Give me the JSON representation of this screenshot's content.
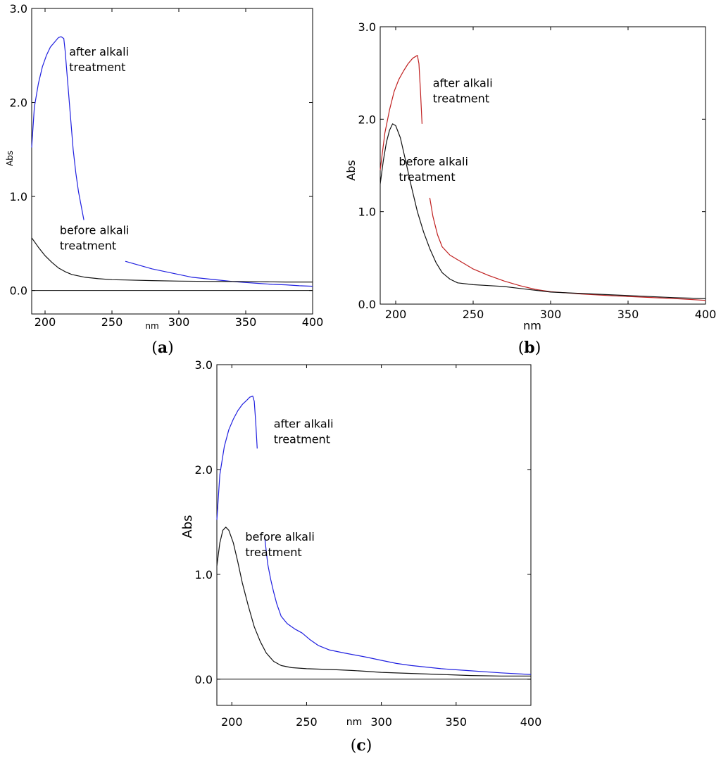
{
  "chart_data": [
    {
      "panel": "a",
      "type": "line",
      "xlabel": "nm",
      "ylabel": "Abs",
      "xlim": [
        190,
        400
      ],
      "ylim": [
        -0.25,
        3.0
      ],
      "xticks": [
        200,
        250,
        300,
        350,
        400
      ],
      "yticks": [
        "0.0",
        "1.0",
        "2.0",
        "3.0"
      ],
      "grid": false,
      "baseline": 0.0,
      "annotations": [
        {
          "lines": [
            "after alkali",
            "treatment"
          ],
          "x": 218,
          "y": 2.5
        },
        {
          "lines": [
            "before alkali",
            "treatment"
          ],
          "x": 211,
          "y": 0.6
        }
      ],
      "series": [
        {
          "color": "#2020e0",
          "segments": [
            [
              [
                190,
                1.52
              ],
              [
                192,
                1.95
              ],
              [
                195,
                2.2
              ],
              [
                198,
                2.38
              ],
              [
                201,
                2.5
              ],
              [
                204,
                2.59
              ],
              [
                207,
                2.64
              ],
              [
                210,
                2.69
              ],
              [
                212,
                2.7
              ],
              [
                214,
                2.68
              ],
              [
                215,
                2.55
              ],
              [
                217,
                2.2
              ],
              [
                219,
                1.85
              ],
              [
                221,
                1.5
              ],
              [
                223,
                1.25
              ],
              [
                225,
                1.05
              ],
              [
                227,
                0.9
              ],
              [
                229,
                0.75
              ]
            ],
            [
              [
                260,
                0.31
              ],
              [
                270,
                0.27
              ],
              [
                280,
                0.23
              ],
              [
                290,
                0.2
              ],
              [
                300,
                0.17
              ],
              [
                310,
                0.14
              ],
              [
                320,
                0.125
              ],
              [
                330,
                0.11
              ],
              [
                340,
                0.095
              ],
              [
                350,
                0.085
              ],
              [
                360,
                0.075
              ],
              [
                370,
                0.065
              ],
              [
                380,
                0.06
              ],
              [
                390,
                0.05
              ],
              [
                400,
                0.045
              ]
            ]
          ]
        },
        {
          "color": "#111111",
          "segments": [
            [
              [
                190,
                0.56
              ],
              [
                195,
                0.46
              ],
              [
                200,
                0.37
              ],
              [
                205,
                0.3
              ],
              [
                210,
                0.24
              ],
              [
                215,
                0.2
              ],
              [
                220,
                0.17
              ],
              [
                230,
                0.14
              ],
              [
                240,
                0.125
              ],
              [
                250,
                0.115
              ],
              [
                260,
                0.112
              ],
              [
                280,
                0.105
              ],
              [
                300,
                0.1
              ],
              [
                320,
                0.097
              ],
              [
                340,
                0.095
              ],
              [
                360,
                0.093
              ],
              [
                380,
                0.09
              ],
              [
                400,
                0.09
              ]
            ]
          ]
        }
      ]
    },
    {
      "panel": "b",
      "type": "line",
      "xlabel": "nm",
      "ylabel": "Abs",
      "xlim": [
        190,
        400
      ],
      "ylim": [
        0.0,
        3.0
      ],
      "xticks": [
        200,
        250,
        300,
        350,
        400
      ],
      "yticks": [
        "0.0",
        "1.0",
        "2.0",
        "3.0"
      ],
      "grid": false,
      "baseline": null,
      "annotations": [
        {
          "lines": [
            "after alkali",
            "treatment"
          ],
          "x": 224,
          "y": 2.35
        },
        {
          "lines": [
            "before alkali",
            "treatment"
          ],
          "x": 202,
          "y": 1.5
        }
      ],
      "series": [
        {
          "color": "#c02020",
          "segments": [
            [
              [
                190,
                1.45
              ],
              [
                193,
                1.85
              ],
              [
                196,
                2.1
              ],
              [
                199,
                2.3
              ],
              [
                202,
                2.43
              ],
              [
                205,
                2.52
              ],
              [
                208,
                2.6
              ],
              [
                211,
                2.66
              ],
              [
                214,
                2.69
              ],
              [
                215,
                2.6
              ],
              [
                216,
                2.3
              ],
              [
                217,
                1.95
              ]
            ],
            [
              [
                222,
                1.15
              ],
              [
                224,
                0.95
              ],
              [
                227,
                0.75
              ],
              [
                230,
                0.62
              ],
              [
                235,
                0.53
              ],
              [
                240,
                0.48
              ],
              [
                245,
                0.43
              ],
              [
                250,
                0.38
              ],
              [
                260,
                0.31
              ],
              [
                270,
                0.25
              ],
              [
                280,
                0.2
              ],
              [
                290,
                0.16
              ],
              [
                300,
                0.135
              ],
              [
                320,
                0.11
              ],
              [
                340,
                0.09
              ],
              [
                360,
                0.075
              ],
              [
                380,
                0.06
              ],
              [
                400,
                0.04
              ]
            ]
          ]
        },
        {
          "color": "#111111",
          "segments": [
            [
              [
                190,
                1.3
              ],
              [
                192,
                1.55
              ],
              [
                194,
                1.75
              ],
              [
                196,
                1.88
              ],
              [
                198,
                1.95
              ],
              [
                200,
                1.93
              ],
              [
                203,
                1.8
              ],
              [
                206,
                1.58
              ],
              [
                210,
                1.28
              ],
              [
                214,
                1.0
              ],
              [
                218,
                0.78
              ],
              [
                222,
                0.6
              ],
              [
                226,
                0.45
              ],
              [
                230,
                0.34
              ],
              [
                235,
                0.27
              ],
              [
                240,
                0.23
              ],
              [
                250,
                0.21
              ],
              [
                260,
                0.2
              ],
              [
                270,
                0.19
              ],
              [
                280,
                0.17
              ],
              [
                290,
                0.15
              ],
              [
                300,
                0.13
              ],
              [
                320,
                0.115
              ],
              [
                340,
                0.1
              ],
              [
                360,
                0.085
              ],
              [
                380,
                0.07
              ],
              [
                400,
                0.06
              ]
            ]
          ]
        }
      ]
    },
    {
      "panel": "c",
      "type": "line",
      "xlabel": "nm",
      "ylabel": "Abs",
      "xlim": [
        190,
        400
      ],
      "ylim": [
        -0.25,
        3.0
      ],
      "xticks": [
        200,
        250,
        300,
        350,
        400
      ],
      "yticks": [
        "0.0",
        "1.0",
        "2.0",
        "3.0"
      ],
      "grid": false,
      "baseline": 0.0,
      "annotations": [
        {
          "lines": [
            "after alkali",
            "treatment"
          ],
          "x": 228,
          "y": 2.4
        },
        {
          "lines": [
            "before alkali",
            "treatment"
          ],
          "x": 209,
          "y": 1.32
        }
      ],
      "series": [
        {
          "color": "#2020e0",
          "segments": [
            [
              [
                190,
                1.52
              ],
              [
                192,
                1.95
              ],
              [
                195,
                2.22
              ],
              [
                198,
                2.38
              ],
              [
                201,
                2.48
              ],
              [
                204,
                2.56
              ],
              [
                207,
                2.62
              ],
              [
                210,
                2.66
              ],
              [
                212,
                2.69
              ],
              [
                214,
                2.7
              ],
              [
                215,
                2.65
              ],
              [
                216,
                2.45
              ],
              [
                217,
                2.2
              ]
            ],
            [
              [
                222,
                1.35
              ],
              [
                224,
                1.1
              ],
              [
                226,
                0.95
              ],
              [
                228,
                0.83
              ],
              [
                230,
                0.72
              ],
              [
                233,
                0.6
              ],
              [
                237,
                0.53
              ],
              [
                242,
                0.48
              ],
              [
                247,
                0.44
              ],
              [
                252,
                0.38
              ],
              [
                258,
                0.32
              ],
              [
                265,
                0.28
              ],
              [
                275,
                0.25
              ],
              [
                290,
                0.21
              ],
              [
                300,
                0.18
              ],
              [
                310,
                0.15
              ],
              [
                320,
                0.13
              ],
              [
                340,
                0.1
              ],
              [
                360,
                0.08
              ],
              [
                380,
                0.06
              ],
              [
                400,
                0.045
              ]
            ]
          ]
        },
        {
          "color": "#111111",
          "segments": [
            [
              [
                190,
                1.08
              ],
              [
                192,
                1.3
              ],
              [
                194,
                1.42
              ],
              [
                196,
                1.45
              ],
              [
                198,
                1.42
              ],
              [
                201,
                1.3
              ],
              [
                204,
                1.12
              ],
              [
                207,
                0.92
              ],
              [
                211,
                0.7
              ],
              [
                215,
                0.5
              ],
              [
                219,
                0.36
              ],
              [
                223,
                0.25
              ],
              [
                228,
                0.17
              ],
              [
                233,
                0.13
              ],
              [
                240,
                0.11
              ],
              [
                250,
                0.1
              ],
              [
                260,
                0.095
              ],
              [
                270,
                0.09
              ],
              [
                280,
                0.083
              ],
              [
                290,
                0.075
              ],
              [
                300,
                0.065
              ],
              [
                320,
                0.055
              ],
              [
                340,
                0.045
              ],
              [
                360,
                0.035
              ],
              [
                380,
                0.03
              ],
              [
                400,
                0.03
              ]
            ]
          ]
        }
      ]
    }
  ],
  "panel_labels": [
    "(a)",
    "(b)",
    "(c)"
  ]
}
